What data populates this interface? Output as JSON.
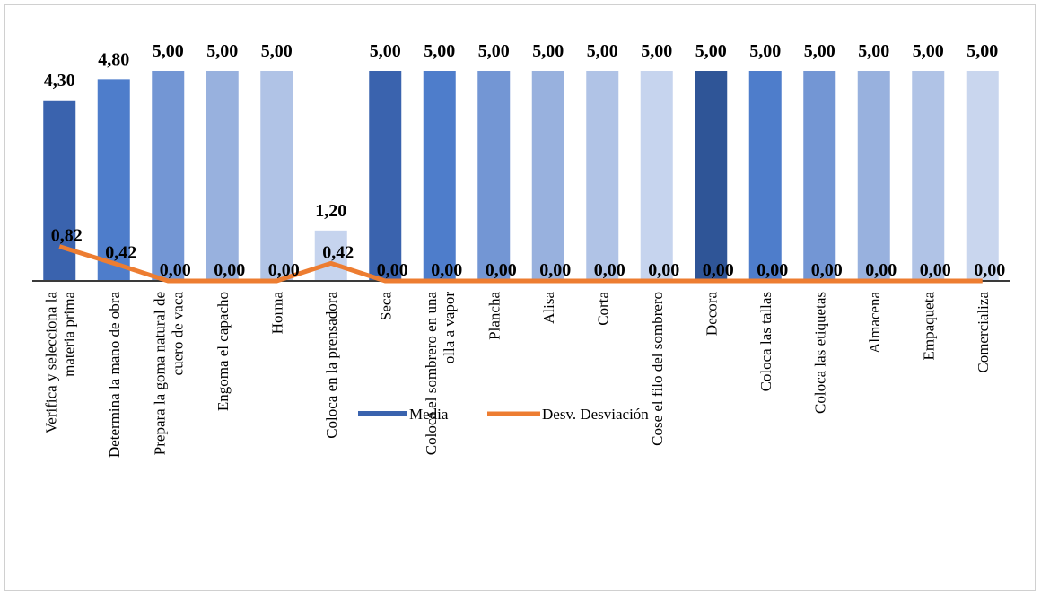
{
  "chart_data": {
    "type": "bar",
    "categories": [
      "Verifica y selecciona la materia prima",
      "Determina la mano de obra",
      "Prepara la goma natural de cuero de vaca",
      "Engoma el capacho",
      "Horma",
      "Coloca en la prensadora",
      "Seca",
      "Coloca el sombrero en una olla a vapor",
      "Plancha",
      "Alisa",
      "Corta",
      "Cose el filo del sombrero",
      "Decora",
      "Coloca las tallas",
      "Coloca las etiquetas",
      "Almacena",
      "Empaqueta",
      "Comercializa"
    ],
    "category_lines": [
      [
        "Verifica y selecciona la",
        "materia prima"
      ],
      [
        "Determina la mano de obra"
      ],
      [
        "Prepara la goma natural de",
        "cuero de vaca"
      ],
      [
        "Engoma el capacho"
      ],
      [
        "Horma"
      ],
      [
        "Coloca en la prensadora"
      ],
      [
        "Seca"
      ],
      [
        "Coloca el sombrero en una",
        "olla a vapor"
      ],
      [
        "Plancha"
      ],
      [
        "Alisa"
      ],
      [
        "Corta"
      ],
      [
        "Cose el filo del sombrero"
      ],
      [
        "Decora"
      ],
      [
        "Coloca las tallas"
      ],
      [
        "Coloca las etiquetas"
      ],
      [
        "Almacena"
      ],
      [
        "Empaqueta"
      ],
      [
        "Comercializa"
      ]
    ],
    "series": [
      {
        "name": "Media",
        "kind": "bar",
        "values": [
          4.3,
          4.8,
          5.0,
          5.0,
          5.0,
          1.2,
          5.0,
          5.0,
          5.0,
          5.0,
          5.0,
          5.0,
          5.0,
          5.0,
          5.0,
          5.0,
          5.0,
          5.0
        ],
        "labels": [
          "4,30",
          "4,80",
          "5,00",
          "5,00",
          "5,00",
          "1,20",
          "5,00",
          "5,00",
          "5,00",
          "5,00",
          "5,00",
          "5,00",
          "5,00",
          "5,00",
          "5,00",
          "5,00",
          "5,00",
          "5,00"
        ]
      },
      {
        "name": "Desv. Desviación",
        "kind": "line",
        "color": "#ED7D31",
        "values": [
          0.82,
          0.42,
          0.0,
          0.0,
          0.0,
          0.42,
          0.0,
          0.0,
          0.0,
          0.0,
          0.0,
          0.0,
          0.0,
          0.0,
          0.0,
          0.0,
          0.0,
          0.0
        ],
        "labels": [
          "0,82",
          "0,42",
          "0,00",
          "0,00",
          "0,00",
          "0,42",
          "0,00",
          "0,00",
          "0,00",
          "0,00",
          "0,00",
          "0,00",
          "0,00",
          "0,00",
          "0,00",
          "0,00",
          "0,00",
          "0,00"
        ]
      }
    ],
    "bar_colors": [
      "#3A63AE",
      "#4E7DCB",
      "#7396D4",
      "#98B1DE",
      "#B0C3E6",
      "#C6D4EE",
      "#3A63AE",
      "#4E7DCB",
      "#7396D4",
      "#98B1DE",
      "#B0C3E6",
      "#C6D4EE",
      "#2F5597",
      "#4E7DCB",
      "#7396D4",
      "#98B1DE",
      "#B0C3E6",
      "#C9D6EE"
    ],
    "ylim": [
      0,
      5
    ],
    "grid": false,
    "legend_position": "bottom"
  }
}
